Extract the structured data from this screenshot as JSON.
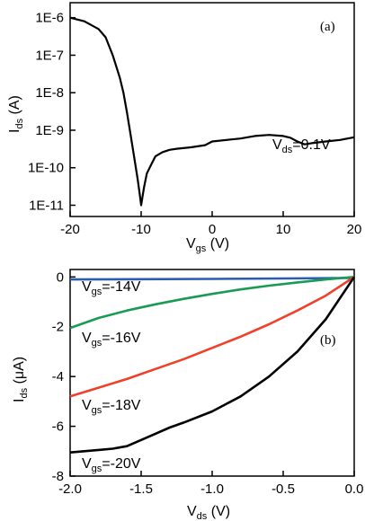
{
  "chart_data": [
    {
      "type": "line",
      "panel_label": "(a)",
      "xlabel": {
        "main": "V",
        "sub": "gs",
        "unit": " (V)"
      },
      "ylabel": {
        "main": "I",
        "sub": "ds",
        "unit": " (A)"
      },
      "xlim": [
        -20,
        20
      ],
      "ylim_log10": [
        -11.3,
        -5.6
      ],
      "yscale": "log",
      "x_ticks": [
        "-20",
        "-10",
        "0",
        "10",
        "20"
      ],
      "y_ticks": [
        "1E-6",
        "1E-7",
        "1E-8",
        "1E-9",
        "1E-10",
        "1E-11"
      ],
      "annotation": {
        "main": "V",
        "sub": "ds",
        "rest": "=0.1V"
      },
      "series": [
        {
          "color": "#000000",
          "x": [
            -20,
            -18,
            -16,
            -15,
            -14,
            -13,
            -12.5,
            -12,
            -11.5,
            -11,
            -10.5,
            -10.2,
            -10,
            -9.6,
            -9.2,
            -8.5,
            -8,
            -7,
            -6,
            -5,
            -3,
            -1,
            0,
            2,
            4,
            6,
            8,
            10,
            11,
            12,
            13,
            14,
            16,
            18,
            20
          ],
          "y": [
            1e-06,
            8e-07,
            5e-07,
            3e-07,
            1e-07,
            2.5e-08,
            1e-08,
            3e-09,
            8e-10,
            2e-10,
            5e-11,
            2e-11,
            1e-11,
            3e-11,
            7e-11,
            1.3e-10,
            2e-10,
            2.6e-10,
            3e-10,
            3.2e-10,
            3.5e-10,
            4e-10,
            5e-10,
            5.5e-10,
            6e-10,
            7e-10,
            7.5e-10,
            7e-10,
            6.3e-10,
            5e-10,
            4.2e-10,
            4.5e-10,
            5e-10,
            5.5e-10,
            6.5e-10
          ]
        }
      ]
    },
    {
      "type": "line",
      "panel_label": "(b)",
      "xlabel": {
        "main": "V",
        "sub": "ds",
        "unit": " (V)"
      },
      "ylabel": {
        "main": "I",
        "sub": "ds",
        "unit": " (μA)"
      },
      "xlim": [
        -2.0,
        0.0
      ],
      "ylim": [
        -8,
        0.3
      ],
      "x_ticks": [
        "-2.0",
        "-1.5",
        "-1.0",
        "-0.5",
        "0.0"
      ],
      "y_ticks": [
        "0",
        "-2",
        "-4",
        "-6",
        "-8"
      ],
      "series": [
        {
          "label_main": "V",
          "label_sub": "gs",
          "label_rest": "=-14V",
          "color": "#2a5db0",
          "x": [
            -2.0,
            -1.5,
            -1.0,
            -0.5,
            0.0
          ],
          "y": [
            -0.1,
            -0.09,
            -0.08,
            -0.06,
            -0.04
          ]
        },
        {
          "label_main": "V",
          "label_sub": "gs",
          "label_rest": "=-16V",
          "color": "#1a9b55",
          "x": [
            -2.0,
            -1.8,
            -1.6,
            -1.4,
            -1.2,
            -1.0,
            -0.8,
            -0.6,
            -0.4,
            -0.2,
            0.0
          ],
          "y": [
            -2.05,
            -1.65,
            -1.35,
            -1.1,
            -0.88,
            -0.68,
            -0.5,
            -0.35,
            -0.22,
            -0.1,
            0.0
          ]
        },
        {
          "label_main": "V",
          "label_sub": "gs",
          "label_rest": "=-18V",
          "color": "#f0402a",
          "x": [
            -2.0,
            -1.8,
            -1.6,
            -1.4,
            -1.2,
            -1.0,
            -0.8,
            -0.6,
            -0.4,
            -0.2,
            0.0
          ],
          "y": [
            -4.8,
            -4.45,
            -4.1,
            -3.7,
            -3.3,
            -2.85,
            -2.4,
            -1.9,
            -1.35,
            -0.75,
            0.0
          ]
        },
        {
          "label_main": "V",
          "label_sub": "gs",
          "label_rest": "=-20V",
          "color": "#000000",
          "x": [
            -2.0,
            -1.9,
            -1.8,
            -1.7,
            -1.6,
            -1.5,
            -1.4,
            -1.3,
            -1.2,
            -1.0,
            -0.8,
            -0.6,
            -0.4,
            -0.2,
            0.0
          ],
          "y": [
            -7.05,
            -7.0,
            -6.95,
            -6.9,
            -6.8,
            -6.55,
            -6.3,
            -6.05,
            -5.85,
            -5.4,
            -4.8,
            -4.0,
            -3.0,
            -1.7,
            0.0
          ]
        }
      ]
    }
  ]
}
